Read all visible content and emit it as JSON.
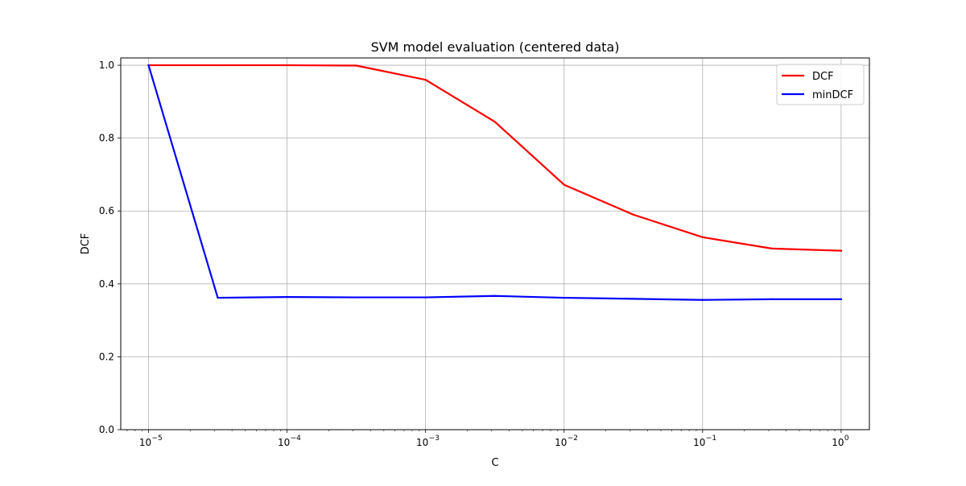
{
  "chart_data": {
    "type": "line",
    "title": "SVM model evaluation (centered data)",
    "xlabel": "C",
    "ylabel": "DCF",
    "x_scale": "log",
    "x_unit_base": "10",
    "xlim": [
      6.3e-06,
      1.6
    ],
    "ylim": [
      0,
      1.02
    ],
    "x_ticks": [
      {
        "exp": "−5",
        "value": 1e-05
      },
      {
        "exp": "−4",
        "value": 0.0001
      },
      {
        "exp": "−3",
        "value": 0.001
      },
      {
        "exp": "−2",
        "value": 0.01
      },
      {
        "exp": "−1",
        "value": 0.1
      },
      {
        "exp": "0",
        "value": 1
      }
    ],
    "y_ticks": [
      "0.0",
      "0.2",
      "0.4",
      "0.6",
      "0.8",
      "1.0"
    ],
    "grid": true,
    "legend_position": "top-right",
    "x": [
      1e-05,
      3.16e-05,
      0.0001,
      0.000316,
      0.001,
      0.00316,
      0.01,
      0.0316,
      0.1,
      0.316,
      1
    ],
    "series": [
      {
        "name": "DCF",
        "color": "#ff0000",
        "values": [
          1.0,
          1.0,
          1.0,
          0.999,
          0.96,
          0.845,
          0.672,
          0.59,
          0.528,
          0.497,
          0.491
        ]
      },
      {
        "name": "minDCF",
        "color": "#0000ff",
        "values": [
          1.0,
          0.362,
          0.364,
          0.363,
          0.363,
          0.367,
          0.362,
          0.359,
          0.356,
          0.358,
          0.358
        ]
      }
    ]
  }
}
